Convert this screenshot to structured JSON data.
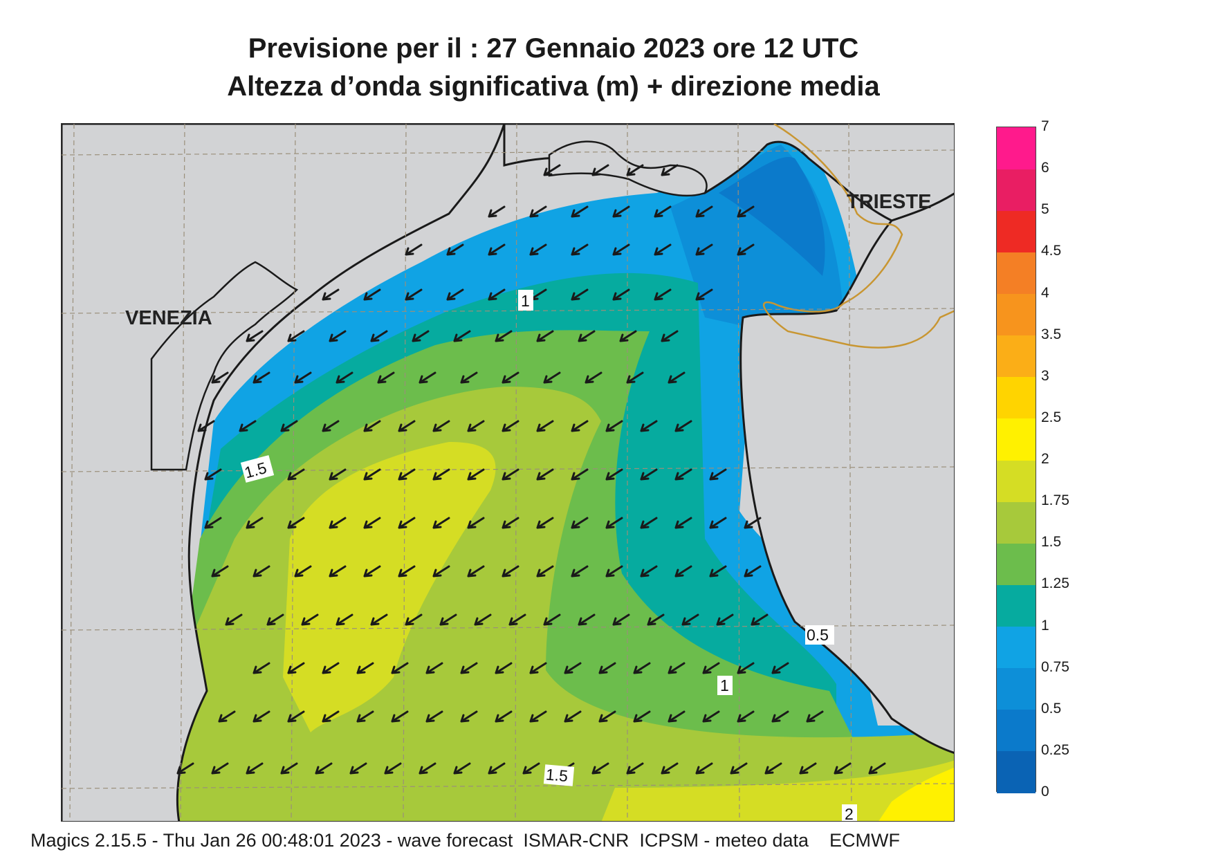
{
  "title": {
    "line1": "Previsione per il  :  27  Gennaio  2023   ore 12 UTC",
    "line2": "Altezza d’onda significativa (m) + direzione media"
  },
  "cities": {
    "venezia": "VENEZIA",
    "trieste": "TRIESTE"
  },
  "contour_labels": [
    "1",
    "1.5",
    "0.5",
    "1",
    "1.5",
    "2"
  ],
  "colorbar": {
    "ticks": [
      "0",
      "0.25",
      "0.5",
      "0.75",
      "1",
      "1.25",
      "1.5",
      "1.75",
      "2",
      "2.5",
      "3",
      "3.5",
      "4",
      "4.5",
      "5",
      "6",
      "7"
    ],
    "colors": [
      "#0a63b4",
      "#0b7acb",
      "#0d8fd8",
      "#10a3e4",
      "#06ab9f",
      "#6cbd4c",
      "#a7c93b",
      "#d5dd24",
      "#fff100",
      "#ffd400",
      "#fbae17",
      "#f7941d",
      "#f47f25",
      "#ee2a24",
      "#e91e63",
      "#ff1a8c"
    ]
  },
  "map_colors": {
    "land": "#d2d3d5",
    "coast": "#1a1a1a",
    "border": "#c89632",
    "grid": "#9a8f7a",
    "arrow": "#1a1a1a"
  },
  "footer": "Magics 2.15.5 - Thu Jan 26 00:48:01 2023 - wave forecast  ISMAR-CNR  ICPSM - meteo data    ECMWF"
}
